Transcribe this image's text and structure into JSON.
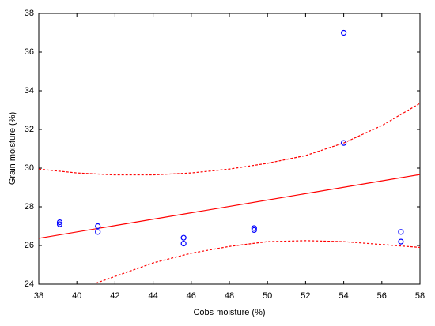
{
  "chart_data": {
    "type": "scatter",
    "xlabel": "Cobs moisture (%)",
    "ylabel": "Grain moisture (%)",
    "x": [
      39.1,
      39.1,
      41.1,
      41.1,
      45.6,
      45.6,
      49.3,
      49.3,
      54.0,
      54.0,
      57.0,
      57.0
    ],
    "values": [
      27.2,
      27.1,
      27.0,
      26.7,
      26.4,
      26.1,
      26.9,
      26.8,
      37.0,
      31.3,
      26.7,
      26.2
    ],
    "color": "#0000ff",
    "lines": [
      {
        "style": "solid",
        "color": "#ff0000",
        "x": [
          38,
          58
        ],
        "values": [
          26.37,
          29.67
        ]
      },
      {
        "style": "dotted",
        "color": "#ff0000",
        "x": [
          38,
          40,
          42,
          44,
          46,
          48,
          50,
          52,
          54,
          56,
          58
        ],
        "values": [
          29.95,
          29.75,
          29.65,
          29.65,
          29.75,
          29.95,
          30.25,
          30.65,
          31.3,
          32.2,
          33.35
        ]
      },
      {
        "style": "dotted",
        "color": "#ff0000",
        "x": [
          41,
          42,
          44,
          46,
          48,
          50,
          52,
          54,
          56,
          58
        ],
        "values": [
          24.05,
          24.4,
          25.1,
          25.6,
          25.95,
          26.2,
          26.25,
          26.2,
          26.05,
          25.9
        ]
      }
    ],
    "xlim": [
      38,
      58
    ],
    "xticks": [
      38,
      40,
      42,
      44,
      46,
      48,
      50,
      52,
      54,
      56,
      58
    ],
    "ylim": [
      24,
      38
    ],
    "yticks": [
      24,
      26,
      28,
      30,
      32,
      34,
      36,
      38
    ],
    "grid": false
  }
}
